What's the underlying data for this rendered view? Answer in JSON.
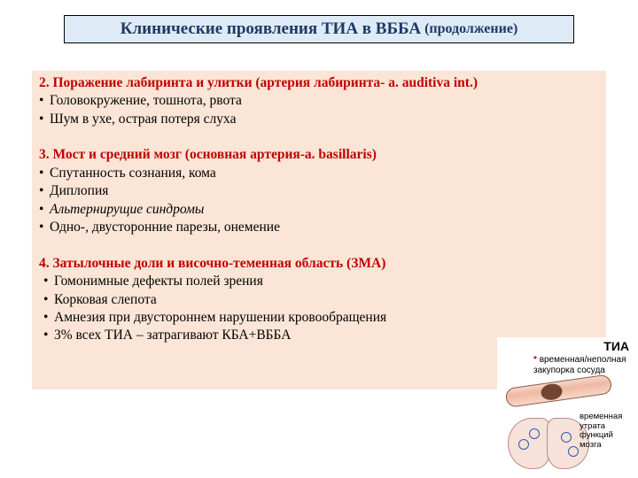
{
  "title": {
    "main": "Клинические проявления ТИА в ВББА",
    "continuation": "(продолжение)"
  },
  "sections": [
    {
      "heading": "2. Поражение лабиринта и улитки (артерия лабиринта- a. auditiva int.)",
      "indent": false,
      "bullets": [
        {
          "text": "Головокружение, тошнота, рвота",
          "italic": false
        },
        {
          "text": "Шум в ухе, острая потеря слуха",
          "italic": false
        }
      ]
    },
    {
      "heading": "3. Мост и средний мозг (основная артерия-a. basillaris)",
      "indent": false,
      "bullets": [
        {
          "text": "Спутанность сознания, кома",
          "italic": false
        },
        {
          "text": "Диплопия",
          "italic": false
        },
        {
          "text": "Альтернирущие синдромы",
          "italic": true
        },
        {
          "text": "Одно-, двусторонние парезы, онемение",
          "italic": false
        }
      ]
    },
    {
      "heading": "4. Затылочные доли и височно-теменная область (ЗМА)",
      "indent": true,
      "bullets": [
        {
          "text": "Гомонимные дефекты полей зрения",
          "italic": false
        },
        {
          "text": "Корковая слепота",
          "italic": false
        },
        {
          "text": "Амнезия при двустороннем нарушении кровообращения",
          "italic": false
        },
        {
          "text": "3% всех ТИА – затрагивают КБА+ВББА",
          "italic": false
        }
      ]
    }
  ],
  "diagram": {
    "tia_label": "ТИА",
    "star": "*",
    "vessel_caption": "временная/неполная закупорка сосуда",
    "brain_caption": "временная утрата функций мозга"
  },
  "colors": {
    "title_bg": "#deebf7",
    "title_text": "#203864",
    "content_bg": "#fbe5d6",
    "heading_text": "#c00000",
    "body_text": "#000000"
  }
}
